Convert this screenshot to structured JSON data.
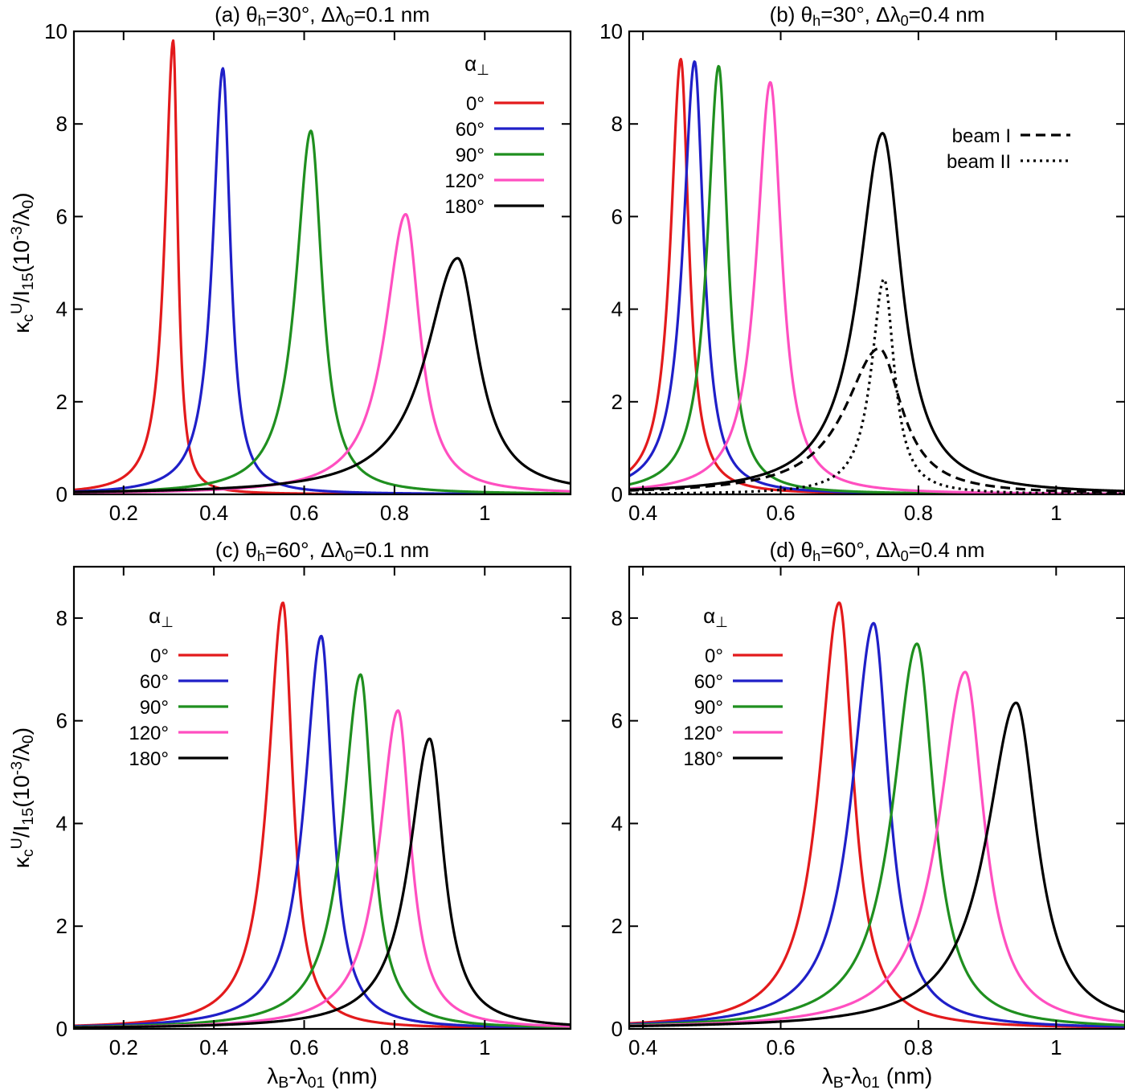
{
  "chart_data": [
    {
      "id": "a",
      "type": "line",
      "title": {
        "pre": "(a) θ",
        "sub1": "h",
        "mid": "=30°, Δλ",
        "sub2": "0",
        "post": "=0.1 nm"
      },
      "xlabel": "",
      "ylabel": {
        "kappa": "κ",
        "sub": "c",
        "sup": "U",
        "slash": "/I",
        "sub2": "15",
        "open": "(10",
        "exp": "-3",
        "div": "/λ",
        "sub3": "0",
        "close": ")"
      },
      "xlim": [
        0.09,
        1.19
      ],
      "ylim": [
        0,
        10
      ],
      "xticks": [
        {
          "v": 0.2,
          "label": "0.2"
        },
        {
          "v": 0.4,
          "label": "0.4"
        },
        {
          "v": 0.6,
          "label": "0.6"
        },
        {
          "v": 0.8,
          "label": "0.8"
        },
        {
          "v": 1.0,
          "label": "1"
        }
      ],
      "yticks": [
        {
          "v": 0,
          "label": "0"
        },
        {
          "v": 2,
          "label": "2"
        },
        {
          "v": 4,
          "label": "4"
        },
        {
          "v": 6,
          "label": "6"
        },
        {
          "v": 8,
          "label": "8"
        },
        {
          "v": 10,
          "label": "10"
        }
      ],
      "legend": {
        "title": "α",
        "title_sub": "⊥",
        "position": "top-right"
      },
      "series": [
        {
          "name": "0°",
          "color": "#e31a1c",
          "style": "solid",
          "peak_x": 0.31,
          "peak_y": 9.8,
          "hw_left": 0.022,
          "hw_right": 0.012,
          "in_legend": true
        },
        {
          "name": "60°",
          "color": "#1f1fc8",
          "style": "solid",
          "peak_x": 0.42,
          "peak_y": 9.2,
          "hw_left": 0.027,
          "hw_right": 0.02,
          "in_legend": true
        },
        {
          "name": "90°",
          "color": "#1f8f1f",
          "style": "solid",
          "peak_x": 0.615,
          "peak_y": 7.85,
          "hw_left": 0.04,
          "hw_right": 0.03,
          "in_legend": true
        },
        {
          "name": "120°",
          "color": "#ff4fc0",
          "style": "solid",
          "peak_x": 0.825,
          "peak_y": 6.05,
          "hw_left": 0.055,
          "hw_right": 0.038,
          "in_legend": true
        },
        {
          "name": "180°",
          "color": "#000000",
          "style": "solid",
          "peak_x": 0.94,
          "peak_y": 5.1,
          "hw_left": 0.085,
          "hw_right": 0.055,
          "in_legend": true
        }
      ]
    },
    {
      "id": "b",
      "type": "line",
      "title": {
        "pre": "(b) θ",
        "sub1": "h",
        "mid": "=30°, Δλ",
        "sub2": "0",
        "post": "=0.4 nm"
      },
      "xlabel": "",
      "ylabel": null,
      "xlim": [
        0.38,
        1.1
      ],
      "ylim": [
        0,
        10
      ],
      "xticks": [
        {
          "v": 0.4,
          "label": "0.4"
        },
        {
          "v": 0.6,
          "label": "0.6"
        },
        {
          "v": 0.8,
          "label": "0.8"
        },
        {
          "v": 1.0,
          "label": "1"
        }
      ],
      "yticks": [
        {
          "v": 0,
          "label": "0"
        },
        {
          "v": 2,
          "label": "2"
        },
        {
          "v": 4,
          "label": "4"
        },
        {
          "v": 6,
          "label": "6"
        },
        {
          "v": 8,
          "label": "8"
        },
        {
          "v": 10,
          "label": "10"
        }
      ],
      "legend": {
        "title": "",
        "title_sub": "",
        "position": "top-right"
      },
      "series": [
        {
          "name": "0°",
          "color": "#e31a1c",
          "style": "solid",
          "peak_x": 0.455,
          "peak_y": 9.4,
          "hw_left": 0.018,
          "hw_right": 0.014,
          "in_legend": false
        },
        {
          "name": "60°",
          "color": "#1f1fc8",
          "style": "solid",
          "peak_x": 0.475,
          "peak_y": 9.35,
          "hw_left": 0.02,
          "hw_right": 0.016,
          "in_legend": false
        },
        {
          "name": "90°",
          "color": "#1f8f1f",
          "style": "solid",
          "peak_x": 0.51,
          "peak_y": 9.25,
          "hw_left": 0.02,
          "hw_right": 0.016,
          "in_legend": false
        },
        {
          "name": "120°",
          "color": "#ff4fc0",
          "style": "solid",
          "peak_x": 0.585,
          "peak_y": 8.9,
          "hw_left": 0.024,
          "hw_right": 0.02,
          "in_legend": false
        },
        {
          "name": "180°",
          "color": "#000000",
          "style": "solid",
          "peak_x": 0.748,
          "peak_y": 7.8,
          "hw_left": 0.042,
          "hw_right": 0.034,
          "in_legend": false
        },
        {
          "name": "beam I",
          "color": "#000000",
          "style": "dashed",
          "peak_x": 0.743,
          "peak_y": 3.15,
          "hw_left": 0.06,
          "hw_right": 0.04,
          "in_legend": true
        },
        {
          "name": "beam II",
          "color": "#000000",
          "style": "dotted",
          "peak_x": 0.75,
          "peak_y": 4.65,
          "hw_left": 0.022,
          "hw_right": 0.018,
          "in_legend": true
        }
      ]
    },
    {
      "id": "c",
      "type": "line",
      "title": {
        "pre": "(c) θ",
        "sub1": "h",
        "mid": "=60°, Δλ",
        "sub2": "0",
        "post": "=0.1 nm"
      },
      "xlabel": {
        "pre": "λ",
        "sub1": "B",
        "mid": "-λ",
        "sub2": "01",
        "post": " (nm)"
      },
      "ylabel": {
        "kappa": "κ",
        "sub": "c",
        "sup": "U",
        "slash": "/I",
        "sub2": "15",
        "open": "(10",
        "exp": "-3",
        "div": "/λ",
        "sub3": "0",
        "close": ")"
      },
      "xlim": [
        0.09,
        1.19
      ],
      "ylim": [
        0,
        9
      ],
      "xticks": [
        {
          "v": 0.2,
          "label": "0.2"
        },
        {
          "v": 0.4,
          "label": "0.4"
        },
        {
          "v": 0.6,
          "label": "0.6"
        },
        {
          "v": 0.8,
          "label": "0.8"
        },
        {
          "v": 1.0,
          "label": "1"
        }
      ],
      "yticks": [
        {
          "v": 0,
          "label": "0"
        },
        {
          "v": 2,
          "label": "2"
        },
        {
          "v": 4,
          "label": "4"
        },
        {
          "v": 6,
          "label": "6"
        },
        {
          "v": 8,
          "label": "8"
        }
      ],
      "legend": {
        "title": "α",
        "title_sub": "⊥",
        "position": "top-left"
      },
      "series": [
        {
          "name": "0°",
          "color": "#e31a1c",
          "style": "solid",
          "peak_x": 0.553,
          "peak_y": 8.3,
          "hw_left": 0.04,
          "hw_right": 0.026,
          "in_legend": true
        },
        {
          "name": "60°",
          "color": "#1f1fc8",
          "style": "solid",
          "peak_x": 0.638,
          "peak_y": 7.65,
          "hw_left": 0.045,
          "hw_right": 0.03,
          "in_legend": true
        },
        {
          "name": "90°",
          "color": "#1f8f1f",
          "style": "solid",
          "peak_x": 0.725,
          "peak_y": 6.9,
          "hw_left": 0.048,
          "hw_right": 0.032,
          "in_legend": true
        },
        {
          "name": "120°",
          "color": "#ff4fc0",
          "style": "solid",
          "peak_x": 0.808,
          "peak_y": 6.2,
          "hw_left": 0.05,
          "hw_right": 0.034,
          "in_legend": true
        },
        {
          "name": "180°",
          "color": "#000000",
          "style": "solid",
          "peak_x": 0.878,
          "peak_y": 5.65,
          "hw_left": 0.055,
          "hw_right": 0.038,
          "in_legend": true
        }
      ]
    },
    {
      "id": "d",
      "type": "line",
      "title": {
        "pre": "(d) θ",
        "sub1": "h",
        "mid": "=60°, Δλ",
        "sub2": "0",
        "post": "=0.4 nm"
      },
      "xlabel": {
        "pre": "λ",
        "sub1": "B",
        "mid": "-λ",
        "sub2": "01",
        "post": " (nm)"
      },
      "ylabel": null,
      "xlim": [
        0.38,
        1.1
      ],
      "ylim": [
        0,
        9
      ],
      "xticks": [
        {
          "v": 0.4,
          "label": "0.4"
        },
        {
          "v": 0.6,
          "label": "0.6"
        },
        {
          "v": 0.8,
          "label": "0.8"
        },
        {
          "v": 1.0,
          "label": "1"
        }
      ],
      "yticks": [
        {
          "v": 0,
          "label": "0"
        },
        {
          "v": 2,
          "label": "2"
        },
        {
          "v": 4,
          "label": "4"
        },
        {
          "v": 6,
          "label": "6"
        },
        {
          "v": 8,
          "label": "8"
        }
      ],
      "legend": {
        "title": "α",
        "title_sub": "⊥",
        "position": "top-left"
      },
      "series": [
        {
          "name": "0°",
          "color": "#e31a1c",
          "style": "solid",
          "peak_x": 0.685,
          "peak_y": 8.3,
          "hw_left": 0.035,
          "hw_right": 0.025,
          "in_legend": true
        },
        {
          "name": "60°",
          "color": "#1f1fc8",
          "style": "solid",
          "peak_x": 0.735,
          "peak_y": 7.9,
          "hw_left": 0.038,
          "hw_right": 0.027,
          "in_legend": true
        },
        {
          "name": "90°",
          "color": "#1f8f1f",
          "style": "solid",
          "peak_x": 0.798,
          "peak_y": 7.5,
          "hw_left": 0.042,
          "hw_right": 0.03,
          "in_legend": true
        },
        {
          "name": "120°",
          "color": "#ff4fc0",
          "style": "solid",
          "peak_x": 0.868,
          "peak_y": 6.95,
          "hw_left": 0.046,
          "hw_right": 0.033,
          "in_legend": true
        },
        {
          "name": "180°",
          "color": "#000000",
          "style": "solid",
          "peak_x": 0.942,
          "peak_y": 6.35,
          "hw_left": 0.052,
          "hw_right": 0.037,
          "in_legend": true
        }
      ]
    }
  ]
}
